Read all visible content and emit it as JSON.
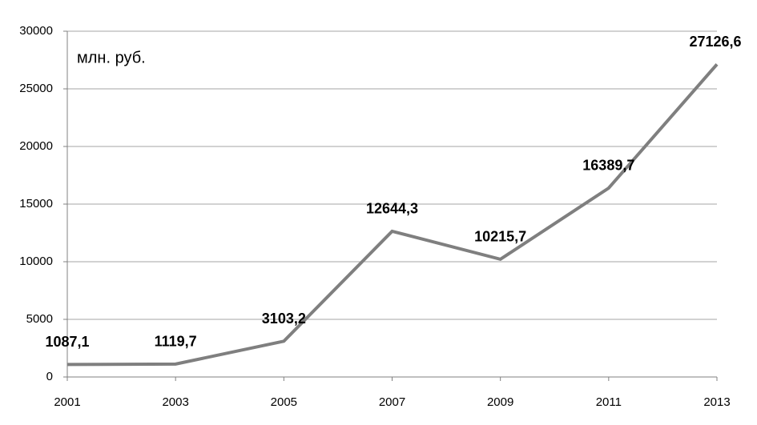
{
  "chart_data": {
    "type": "line",
    "annotation": "млн. руб.",
    "categories": [
      "2001",
      "2003",
      "2005",
      "2007",
      "2009",
      "2011",
      "2013"
    ],
    "values": [
      1087.1,
      1119.7,
      3103.2,
      12644.3,
      10215.7,
      16389.7,
      27126.6
    ],
    "value_labels": [
      "1087,1",
      "1119,7",
      "3103,2",
      "12644,3",
      "10215,7",
      "16389,7",
      "27126,6"
    ],
    "color": "#7f7f7f",
    "ylim": [
      0,
      30000
    ],
    "yticks": [
      0,
      5000,
      10000,
      15000,
      20000,
      25000,
      30000
    ],
    "grid": true
  }
}
